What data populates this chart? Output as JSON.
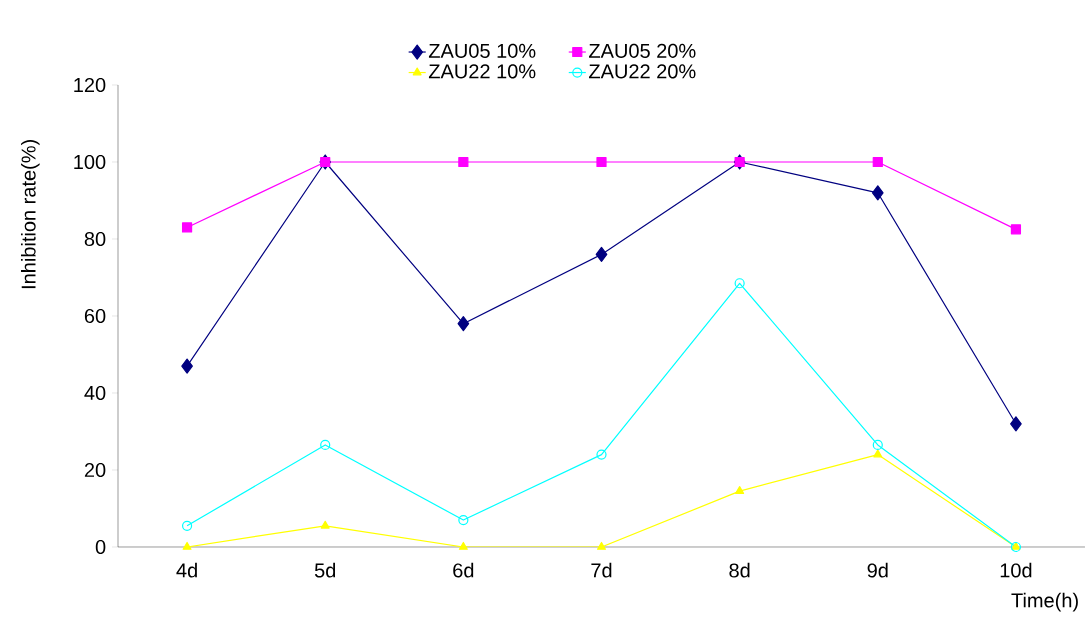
{
  "chart_data": {
    "type": "line",
    "xlabel": "Time(h)",
    "ylabel": "Inhibition rate(%)",
    "categories": [
      "4d",
      "5d",
      "6d",
      "7d",
      "8d",
      "9d",
      "10d"
    ],
    "series": [
      {
        "name": "ZAU05 10%",
        "color": "#000080",
        "marker": "diamond",
        "values": [
          47,
          100,
          58,
          76,
          100,
          92,
          32
        ]
      },
      {
        "name": "ZAU05 20%",
        "color": "#ff00ff",
        "marker": "square",
        "values": [
          83,
          100,
          100,
          100,
          100,
          100,
          82.5
        ]
      },
      {
        "name": "ZAU22 10%",
        "color": "#ffff00",
        "marker": "triangle",
        "values": [
          0,
          5.5,
          0,
          0,
          14.5,
          24,
          0
        ]
      },
      {
        "name": "ZAU22 20%",
        "color": "#00ffff",
        "marker": "circle",
        "values": [
          5.5,
          26.5,
          7,
          24,
          68.5,
          26.5,
          0
        ]
      }
    ],
    "ylim": [
      0,
      120
    ],
    "yticks": [
      0,
      20,
      40,
      60,
      80,
      100,
      120
    ],
    "grid": false,
    "legend": "top",
    "line_style": "solid"
  }
}
